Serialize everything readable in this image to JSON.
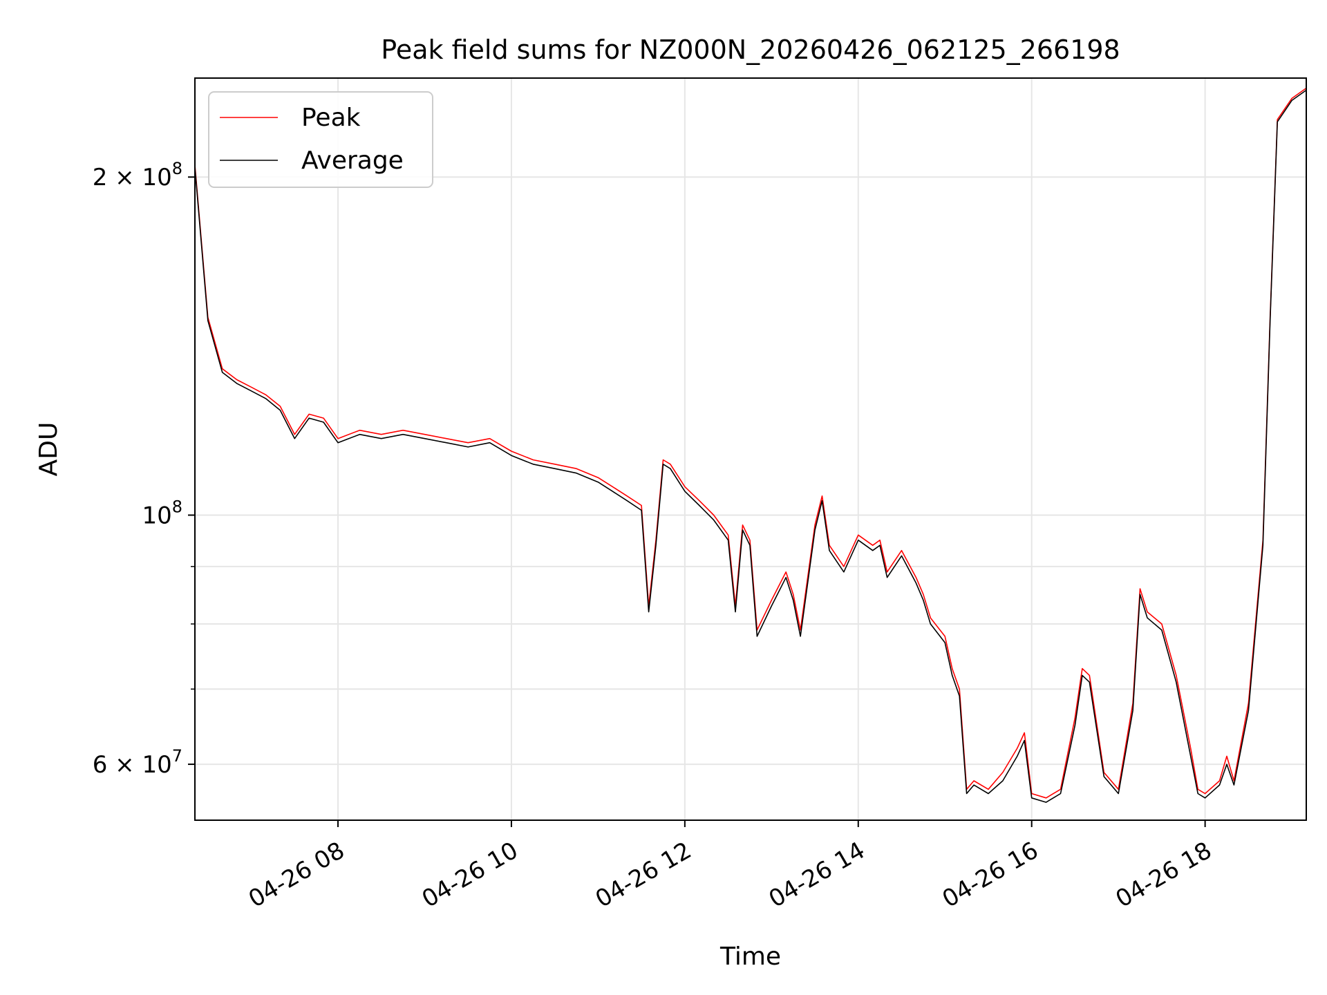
{
  "chart_data": {
    "type": "line",
    "title": "Peak field sums for NZ000N_20260426_062125_266198",
    "xlabel": "Time",
    "ylabel": "ADU",
    "y_scale": "log",
    "xlim": [
      "2026-04-26 06:21",
      "2026-04-26 19:10"
    ],
    "ylim": [
      53500000.0,
      245000000.0
    ],
    "x_ticks": [
      {
        "t": "2026-04-26 08:00",
        "label": "04-26 08"
      },
      {
        "t": "2026-04-26 10:00",
        "label": "04-26 10"
      },
      {
        "t": "2026-04-26 12:00",
        "label": "04-26 12"
      },
      {
        "t": "2026-04-26 14:00",
        "label": "04-26 14"
      },
      {
        "t": "2026-04-26 16:00",
        "label": "04-26 16"
      },
      {
        "t": "2026-04-26 18:00",
        "label": "04-26 18"
      }
    ],
    "y_ticks_major": [
      {
        "v": 60000000,
        "base": "6 × 10",
        "exp": "7"
      },
      {
        "v": 100000000,
        "base": "10",
        "exp": "8"
      },
      {
        "v": 200000000,
        "base": "2 × 10",
        "exp": "8"
      }
    ],
    "y_ticks_minor": [
      70000000,
      80000000,
      90000000
    ],
    "grid": true,
    "legend": {
      "position": "top-left"
    },
    "series": [
      {
        "name": "Peak",
        "color": "#ff0000",
        "x": [
          "2026-04-26 06:21",
          "2026-04-26 06:30",
          "2026-04-26 06:40",
          "2026-04-26 06:50",
          "2026-04-26 07:00",
          "2026-04-26 07:10",
          "2026-04-26 07:20",
          "2026-04-26 07:30",
          "2026-04-26 07:40",
          "2026-04-26 07:50",
          "2026-04-26 08:00",
          "2026-04-26 08:15",
          "2026-04-26 08:30",
          "2026-04-26 08:45",
          "2026-04-26 09:00",
          "2026-04-26 09:15",
          "2026-04-26 09:30",
          "2026-04-26 09:45",
          "2026-04-26 10:00",
          "2026-04-26 10:15",
          "2026-04-26 10:30",
          "2026-04-26 10:45",
          "2026-04-26 11:00",
          "2026-04-26 11:10",
          "2026-04-26 11:20",
          "2026-04-26 11:30",
          "2026-04-26 11:35",
          "2026-04-26 11:40",
          "2026-04-26 11:45",
          "2026-04-26 11:50",
          "2026-04-26 12:00",
          "2026-04-26 12:10",
          "2026-04-26 12:20",
          "2026-04-26 12:30",
          "2026-04-26 12:35",
          "2026-04-26 12:40",
          "2026-04-26 12:45",
          "2026-04-26 12:50",
          "2026-04-26 13:00",
          "2026-04-26 13:10",
          "2026-04-26 13:15",
          "2026-04-26 13:20",
          "2026-04-26 13:30",
          "2026-04-26 13:35",
          "2026-04-26 13:40",
          "2026-04-26 13:50",
          "2026-04-26 14:00",
          "2026-04-26 14:10",
          "2026-04-26 14:15",
          "2026-04-26 14:20",
          "2026-04-26 14:30",
          "2026-04-26 14:40",
          "2026-04-26 14:45",
          "2026-04-26 14:50",
          "2026-04-26 15:00",
          "2026-04-26 15:05",
          "2026-04-26 15:10",
          "2026-04-26 15:15",
          "2026-04-26 15:20",
          "2026-04-26 15:30",
          "2026-04-26 15:40",
          "2026-04-26 15:50",
          "2026-04-26 15:55",
          "2026-04-26 16:00",
          "2026-04-26 16:10",
          "2026-04-26 16:20",
          "2026-04-26 16:30",
          "2026-04-26 16:35",
          "2026-04-26 16:40",
          "2026-04-26 16:50",
          "2026-04-26 17:00",
          "2026-04-26 17:10",
          "2026-04-26 17:15",
          "2026-04-26 17:20",
          "2026-04-26 17:30",
          "2026-04-26 17:40",
          "2026-04-26 17:50",
          "2026-04-26 17:55",
          "2026-04-26 18:00",
          "2026-04-26 18:10",
          "2026-04-26 18:15",
          "2026-04-26 18:20",
          "2026-04-26 18:30",
          "2026-04-26 18:40",
          "2026-04-26 18:45",
          "2026-04-26 18:50",
          "2026-04-26 19:00",
          "2026-04-26 19:10"
        ],
        "values": [
          205000000,
          150000000,
          135000000,
          132000000,
          130000000,
          128000000,
          125000000,
          118000000,
          123000000,
          122000000,
          117000000,
          119000000,
          118000000,
          119000000,
          118000000,
          117000000,
          116000000,
          117000000,
          114000000,
          112000000,
          111000000,
          110000000,
          108000000,
          106000000,
          104000000,
          102000000,
          83000000,
          95000000,
          112000000,
          111000000,
          106000000,
          103000000,
          100000000,
          96000000,
          83000000,
          98000000,
          95000000,
          79000000,
          84000000,
          89000000,
          85000000,
          79000000,
          98000000,
          104000000,
          94000000,
          90000000,
          96000000,
          94000000,
          95000000,
          89000000,
          93000000,
          88000000,
          85000000,
          81000000,
          78000000,
          73000000,
          70000000,
          57000000,
          58000000,
          57000000,
          59000000,
          62000000,
          64000000,
          56500000,
          56000000,
          57000000,
          66000000,
          73000000,
          72000000,
          59000000,
          57000000,
          68000000,
          86000000,
          82000000,
          80000000,
          72000000,
          62000000,
          57000000,
          56500000,
          58000000,
          61000000,
          58000000,
          68000000,
          95000000,
          150000000,
          225000000,
          235000000,
          240000000
        ]
      },
      {
        "name": "Average",
        "color": "#000000",
        "x": [
          "2026-04-26 06:21",
          "2026-04-26 06:30",
          "2026-04-26 06:40",
          "2026-04-26 06:50",
          "2026-04-26 07:00",
          "2026-04-26 07:10",
          "2026-04-26 07:20",
          "2026-04-26 07:30",
          "2026-04-26 07:40",
          "2026-04-26 07:50",
          "2026-04-26 08:00",
          "2026-04-26 08:15",
          "2026-04-26 08:30",
          "2026-04-26 08:45",
          "2026-04-26 09:00",
          "2026-04-26 09:15",
          "2026-04-26 09:30",
          "2026-04-26 09:45",
          "2026-04-26 10:00",
          "2026-04-26 10:15",
          "2026-04-26 10:30",
          "2026-04-26 10:45",
          "2026-04-26 11:00",
          "2026-04-26 11:10",
          "2026-04-26 11:20",
          "2026-04-26 11:30",
          "2026-04-26 11:35",
          "2026-04-26 11:40",
          "2026-04-26 11:45",
          "2026-04-26 11:50",
          "2026-04-26 12:00",
          "2026-04-26 12:10",
          "2026-04-26 12:20",
          "2026-04-26 12:30",
          "2026-04-26 12:35",
          "2026-04-26 12:40",
          "2026-04-26 12:45",
          "2026-04-26 12:50",
          "2026-04-26 13:00",
          "2026-04-26 13:10",
          "2026-04-26 13:15",
          "2026-04-26 13:20",
          "2026-04-26 13:30",
          "2026-04-26 13:35",
          "2026-04-26 13:40",
          "2026-04-26 13:50",
          "2026-04-26 14:00",
          "2026-04-26 14:10",
          "2026-04-26 14:15",
          "2026-04-26 14:20",
          "2026-04-26 14:30",
          "2026-04-26 14:40",
          "2026-04-26 14:45",
          "2026-04-26 14:50",
          "2026-04-26 15:00",
          "2026-04-26 15:05",
          "2026-04-26 15:10",
          "2026-04-26 15:15",
          "2026-04-26 15:20",
          "2026-04-26 15:30",
          "2026-04-26 15:40",
          "2026-04-26 15:50",
          "2026-04-26 15:55",
          "2026-04-26 16:00",
          "2026-04-26 16:10",
          "2026-04-26 16:20",
          "2026-04-26 16:30",
          "2026-04-26 16:35",
          "2026-04-26 16:40",
          "2026-04-26 16:50",
          "2026-04-26 17:00",
          "2026-04-26 17:10",
          "2026-04-26 17:15",
          "2026-04-26 17:20",
          "2026-04-26 17:30",
          "2026-04-26 17:40",
          "2026-04-26 17:50",
          "2026-04-26 17:55",
          "2026-04-26 18:00",
          "2026-04-26 18:10",
          "2026-04-26 18:15",
          "2026-04-26 18:20",
          "2026-04-26 18:30",
          "2026-04-26 18:40",
          "2026-04-26 18:45",
          "2026-04-26 18:50",
          "2026-04-26 19:00",
          "2026-04-26 19:10"
        ],
        "values": [
          204000000,
          149000000,
          134000000,
          131000000,
          129000000,
          127000000,
          124000000,
          117000000,
          122000000,
          121000000,
          116000000,
          118000000,
          117000000,
          118000000,
          117000000,
          116000000,
          115000000,
          116000000,
          113000000,
          111000000,
          110000000,
          109000000,
          107000000,
          105000000,
          103000000,
          101000000,
          82000000,
          94000000,
          111000000,
          110000000,
          105000000,
          102000000,
          99000000,
          95000000,
          82000000,
          97000000,
          94000000,
          78000000,
          83000000,
          88000000,
          84000000,
          78000000,
          97000000,
          103000000,
          93000000,
          89000000,
          95000000,
          93000000,
          94000000,
          88000000,
          92000000,
          87000000,
          84000000,
          80000000,
          77000000,
          72000000,
          69000000,
          56500000,
          57500000,
          56500000,
          58000000,
          61000000,
          63000000,
          56000000,
          55500000,
          56500000,
          65000000,
          72000000,
          71000000,
          58500000,
          56500000,
          67000000,
          85000000,
          81000000,
          79000000,
          71000000,
          61000000,
          56500000,
          56000000,
          57500000,
          60000000,
          57500000,
          67000000,
          94000000,
          149000000,
          224000000,
          234000000,
          239000000
        ]
      }
    ]
  }
}
